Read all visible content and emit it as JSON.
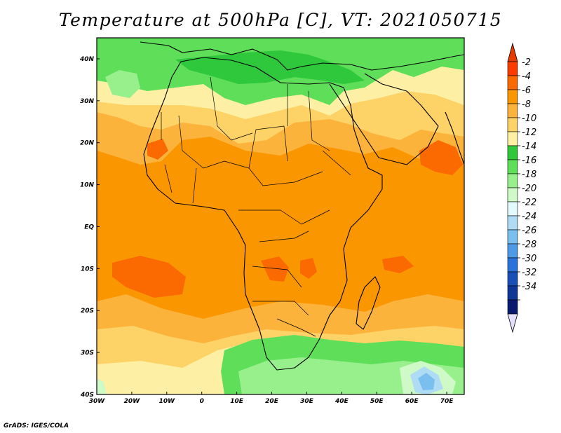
{
  "title": "Temperature at 500hPa [C], VT: 2021050715",
  "credit": "GrADS: IGES/COLA",
  "map": {
    "lon_range": [
      -30,
      75
    ],
    "lat_range": [
      -40,
      45
    ],
    "lon_ticks": [
      {
        "value": -30,
        "label": "30W"
      },
      {
        "value": -20,
        "label": "20W"
      },
      {
        "value": -10,
        "label": "10W"
      },
      {
        "value": 0,
        "label": "0"
      },
      {
        "value": 10,
        "label": "10E"
      },
      {
        "value": 20,
        "label": "20E"
      },
      {
        "value": 30,
        "label": "30E"
      },
      {
        "value": 40,
        "label": "40E"
      },
      {
        "value": 50,
        "label": "50E"
      },
      {
        "value": 60,
        "label": "60E"
      },
      {
        "value": 70,
        "label": "70E"
      }
    ],
    "lat_ticks": [
      {
        "value": 40,
        "label": "40N"
      },
      {
        "value": 30,
        "label": "30N"
      },
      {
        "value": 20,
        "label": "20N"
      },
      {
        "value": 10,
        "label": "10N"
      },
      {
        "value": 0,
        "label": "EQ"
      },
      {
        "value": -10,
        "label": "10S"
      },
      {
        "value": -20,
        "label": "20S"
      },
      {
        "value": -30,
        "label": "30S"
      },
      {
        "value": -40,
        "label": "40S"
      }
    ]
  },
  "colorbar": {
    "levels": [
      "-2",
      "-4",
      "-6",
      "-8",
      "-10",
      "-12",
      "-14",
      "-16",
      "-18",
      "-20",
      "-22",
      "-24",
      "-26",
      "-28",
      "-30",
      "-32",
      "-34"
    ],
    "colors": [
      "#fa3c00",
      "#fb6a00",
      "#fa9600",
      "#fbb33c",
      "#fdd266",
      "#fdf0a4",
      "#2fc83c",
      "#5fde5a",
      "#98f08c",
      "#cffac7",
      "#e3fafd",
      "#afdcf4",
      "#7bbfee",
      "#4f9ae6",
      "#2c72dc",
      "#1a4fb8",
      "#0f3597",
      "#0a1a6e"
    ],
    "top_color": "#e63c00",
    "bottom_color": "#e6e0ff"
  }
}
